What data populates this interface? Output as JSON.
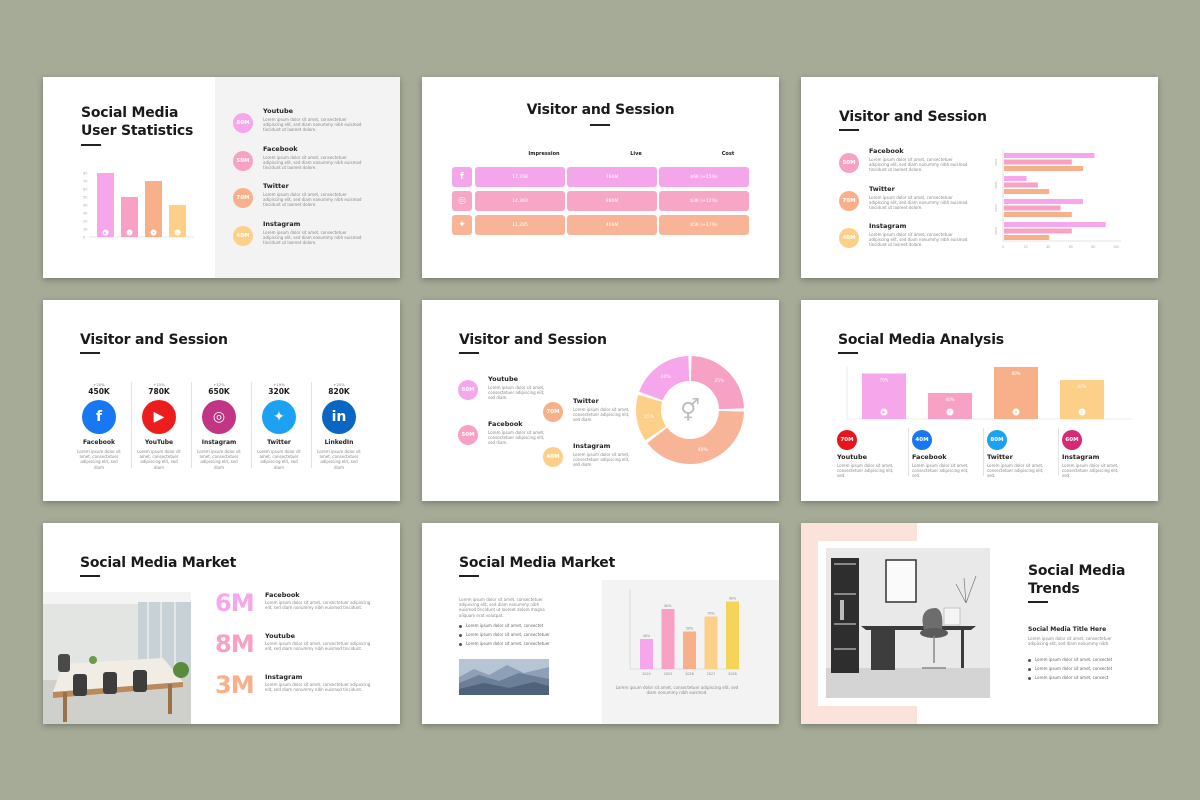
{
  "s1": {
    "title1": "Social Media",
    "title2": "User Statistics",
    "items": [
      {
        "value": "80M",
        "name": "Youtube",
        "color": "#f6a6ea"
      },
      {
        "value": "50M",
        "name": "Facebook",
        "color": "#f7a1c4"
      },
      {
        "value": "70M",
        "name": "Twitter",
        "color": "#f8b08a"
      },
      {
        "value": "40M",
        "name": "Instagram",
        "color": "#fdd089"
      }
    ],
    "desc": "Lorem ipsum dolor sit amet, consectetuer adipiscing elit, sed diam nonummy nibh euismod tincidunt ut laoreet dolore."
  },
  "s2": {
    "title": "Visitor and Session",
    "headers": [
      "Impression",
      "Live",
      "Cost"
    ],
    "rows": [
      {
        "icon": "facebook-icon",
        "glyph": "f",
        "color": "#f3a6ea",
        "cells": [
          "17,768",
          "760M",
          "$6K (+15%)"
        ]
      },
      {
        "icon": "instagram-icon",
        "glyph": "◎",
        "color": "#f7a6c6",
        "cells": [
          "14,360",
          "880M",
          "$3K (+12%)"
        ]
      },
      {
        "icon": "twitter-icon",
        "glyph": "✦",
        "color": "#f8b496",
        "cells": [
          "11,285",
          "400M",
          "$5K (+17%)"
        ]
      }
    ]
  },
  "s3": {
    "title": "Visitor and Session",
    "items": [
      {
        "value": "50M",
        "name": "Facebook",
        "color": "#f7a1c4"
      },
      {
        "value": "70M",
        "name": "Twitter",
        "color": "#f8b08a"
      },
      {
        "value": "40M",
        "name": "Instagram",
        "color": "#fdd089"
      }
    ],
    "desc": "Lorem ipsum dolor sit amet, consectetuer adipiscing elit, sed diam nonummy nibh euismod tincidunt ut laoreet dolore.",
    "xticks": [
      "0",
      "20",
      "40",
      "60",
      "80",
      "100"
    ],
    "yticks": [
      "2021",
      "2022",
      "2023",
      "2024"
    ]
  },
  "s4": {
    "title": "Visitor and Session",
    "items": [
      {
        "pct": "+20%",
        "value": "450K",
        "name": "Facebook",
        "glyph": "f",
        "icon": "facebook-icon",
        "color": "#1877f2"
      },
      {
        "pct": "+15%",
        "value": "780K",
        "name": "YouTube",
        "glyph": "▶",
        "icon": "youtube-icon",
        "color": "#ee1d1d"
      },
      {
        "pct": "+12%",
        "value": "650K",
        "name": "Instagram",
        "glyph": "◎",
        "icon": "instagram-icon",
        "color": "#c13584"
      },
      {
        "pct": "+19%",
        "value": "320K",
        "name": "Twitter",
        "glyph": "✦",
        "icon": "twitter-icon",
        "color": "#1da1f2"
      },
      {
        "pct": "+25%",
        "value": "820K",
        "name": "LinkedIn",
        "glyph": "in",
        "icon": "linkedin-icon",
        "color": "#0a66c2"
      }
    ],
    "desc": "Lorem ipsum dolor sit amet, consectetuer adipiscing elit, sed diam"
  },
  "s5": {
    "title": "Visitor and Session",
    "items": [
      {
        "value": "80M",
        "name": "Youtube",
        "color": "#f6a6ea"
      },
      {
        "value": "70M",
        "name": "Twitter",
        "color": "#f8b08a"
      },
      {
        "value": "50M",
        "name": "Facebook",
        "color": "#f7a1c4"
      },
      {
        "value": "40M",
        "name": "Instagram",
        "color": "#fdd089"
      }
    ],
    "desc": "Lorem ipsum dolor sit amet, consectetuer adipiscing elit, sed diam.",
    "donut": [
      {
        "label": "25%",
        "value": 25,
        "color": "#f7a1c4"
      },
      {
        "label": "40%",
        "value": 40,
        "color": "#f8b496"
      },
      {
        "label": "15%",
        "value": 15,
        "color": "#fdd089"
      },
      {
        "label": "20%",
        "value": 20,
        "color": "#f6a6ea"
      }
    ]
  },
  "s6": {
    "title": "Social Media Analysis",
    "bars": [
      {
        "label": "70%",
        "value": 70,
        "color": "#f6a6ea",
        "glyph": "▶"
      },
      {
        "label": "40%",
        "value": 40,
        "color": "#f7a1c4",
        "glyph": "f"
      },
      {
        "label": "80%",
        "value": 80,
        "color": "#f8b08a",
        "glyph": "✦"
      },
      {
        "label": "60%",
        "value": 60,
        "color": "#fdd089",
        "glyph": "◎"
      }
    ],
    "items": [
      {
        "value": "70M",
        "name": "Youtube",
        "color": "#e8141b"
      },
      {
        "value": "40M",
        "name": "Facebook",
        "color": "#1877f2"
      },
      {
        "value": "80M",
        "name": "Twitter",
        "color": "#1da1f2"
      },
      {
        "value": "60M",
        "name": "Instagram",
        "color": "#d62976"
      }
    ],
    "desc": "Lorem ipsum dolor sit amet, consectetuer adipiscing elit, sed."
  },
  "s7": {
    "title": "Social Media Market",
    "items": [
      {
        "value": "6M",
        "name": "Facebook",
        "color": "#f6a6ea"
      },
      {
        "value": "8M",
        "name": "Youtube",
        "color": "#f7a1c4"
      },
      {
        "value": "3M",
        "name": "Instagram",
        "color": "#f8b08a"
      }
    ],
    "desc": "Lorem ipsum dolor sit amet, consectetuer adipiscing elit, sed diam nonummy nibh euismod tincidunt."
  },
  "s8": {
    "title": "Social Media Market",
    "para": "Lorem ipsum dolor sit amet, consectetuer adipiscing elit, sed diam nonummy nibh euismod tincidunt ut laoreet dolore magna aliquam erat volutpat.",
    "bullets": [
      "Lorem ipsum dolor sit amet, consectet",
      "Lorem ipsum dolor sit amet, consectetuer",
      "Lorem ipsum dolor sit amet, consectetuer"
    ],
    "caption": "Lorem ipsum dolor sit amet, consectetuer adipiscing elit, sed diam nonummy nibh euismod."
  },
  "s9": {
    "title1": "Social Media",
    "title2": "Trends",
    "subtitle": "Social Media Title Here",
    "para": "Lorem ipsum dolor sit amet, consectetuer adipiscing elit, sed diam nonummy nibh.",
    "bullets": [
      "Lorem ipsum dolor sit amet, consectet",
      "Lorem ipsum dolor sit amet, consectet",
      "Lorem ipsum dolor sit amet, consect"
    ]
  },
  "chart_data": [
    {
      "type": "bar",
      "categories": [
        "Youtube",
        "Facebook",
        "Twitter",
        "Instagram"
      ],
      "values": [
        80,
        50,
        70,
        40
      ],
      "yticks": [
        "80",
        "70",
        "60",
        "50",
        "40",
        "30",
        "20",
        "10",
        "0"
      ],
      "ylim": [
        0,
        80
      ]
    },
    {
      "type": "bar",
      "orientation": "horizontal",
      "categories": [
        "2021",
        "2022",
        "2023",
        "2024"
      ],
      "series": [
        {
          "values": [
            80,
            20,
            70,
            90
          ],
          "color": "#f6a6ea"
        },
        {
          "values": [
            60,
            30,
            50,
            60
          ],
          "color": "#f7a1c4"
        },
        {
          "values": [
            70,
            40,
            60,
            40
          ],
          "color": "#f8b08a"
        }
      ],
      "xlim": [
        0,
        100
      ]
    },
    {
      "type": "pie",
      "labels": [
        "25%",
        "40%",
        "15%",
        "20%"
      ],
      "values": [
        25,
        40,
        15,
        20
      ]
    },
    {
      "type": "bar",
      "categories": [
        "Youtube",
        "Facebook",
        "Twitter",
        "Instagram"
      ],
      "values": [
        70,
        40,
        80,
        60
      ]
    },
    {
      "type": "bar",
      "categories": [
        "2024",
        "2025",
        "2026",
        "2027",
        "2028"
      ],
      "values": [
        40,
        80,
        50,
        70,
        90
      ],
      "labels": [
        "40%",
        "80%",
        "50%",
        "70%",
        "90%"
      ],
      "colors": [
        "#f6a6ea",
        "#f7a1c4",
        "#f8b08a",
        "#fdd089",
        "#f5d45a"
      ]
    }
  ]
}
